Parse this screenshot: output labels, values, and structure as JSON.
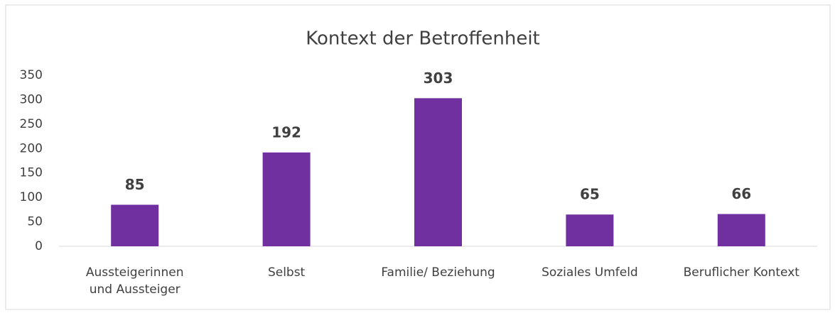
{
  "chart_data": {
    "type": "bar",
    "title": "Kontext der Betroffenheit",
    "categories": [
      "Aussteigerinnen und Aussteiger",
      "Selbst",
      "Familie/ Beziehung",
      "Soziales Umfeld",
      "Beruflicher Kontext"
    ],
    "values": [
      85,
      192,
      303,
      65,
      66
    ],
    "color": "#7030a0",
    "ylim": [
      0,
      350
    ],
    "yticks": [
      0,
      50,
      100,
      150,
      200,
      250,
      300,
      350
    ],
    "grid": false
  }
}
